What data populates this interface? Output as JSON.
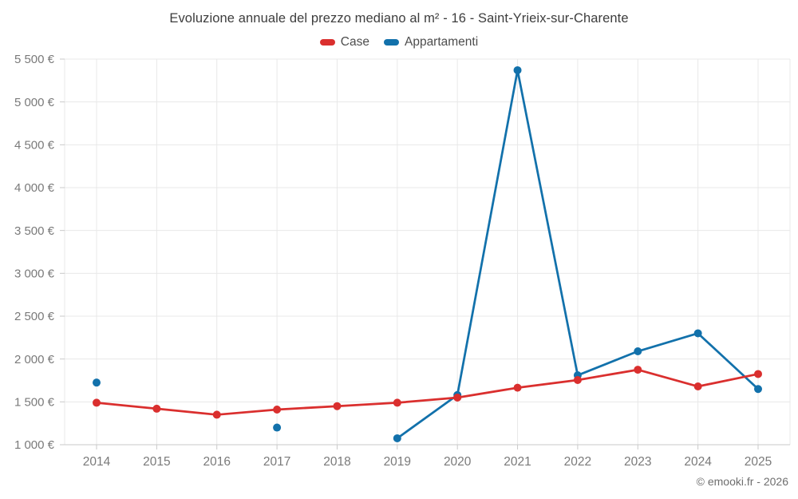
{
  "header": {
    "title": "Evoluzione annuale del prezzo mediano al m² - 16 - Saint-Yrieix-sur-Charente"
  },
  "legend": {
    "items": [
      {
        "label": "Case",
        "color": "#da2f2e"
      },
      {
        "label": "Appartamenti",
        "color": "#1271ab"
      }
    ]
  },
  "footer": {
    "credit": "© emooki.fr - 2026"
  },
  "chart_data": {
    "type": "line",
    "title": "Evoluzione annuale del prezzo mediano al m² - 16 - Saint-Yrieix-sur-Charente",
    "categories": [
      "2014",
      "2015",
      "2016",
      "2017",
      "2018",
      "2019",
      "2020",
      "2021",
      "2022",
      "2023",
      "2024",
      "2025"
    ],
    "series": [
      {
        "name": "Case",
        "color": "#da2f2e",
        "values": [
          1490,
          1420,
          1350,
          1410,
          1450,
          1490,
          1550,
          1665,
          1755,
          1875,
          1680,
          1825
        ]
      },
      {
        "name": "Appartamenti",
        "color": "#1271ab",
        "values": [
          1725,
          null,
          null,
          1200,
          null,
          1075,
          1580,
          5370,
          1810,
          2090,
          2300,
          1650
        ]
      }
    ],
    "xlabel": "",
    "ylabel": "",
    "y_axis": {
      "min": 1000,
      "max": 5500,
      "step": 500,
      "tick_labels": [
        "1 000 €",
        "1 500 €",
        "2 000 €",
        "2 500 €",
        "3 000 €",
        "3 500 €",
        "4 000 €",
        "4 500 €",
        "5 000 €",
        "5 500 €"
      ]
    },
    "grid": true,
    "legend_position": "top",
    "colors": {
      "gridline": "#e8e8e8",
      "axis_line": "#c9c9c9",
      "tick_label": "#7a7a7a"
    }
  }
}
